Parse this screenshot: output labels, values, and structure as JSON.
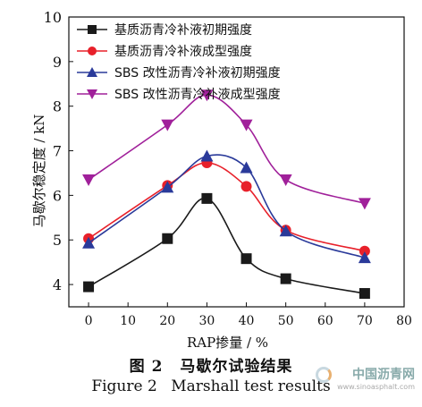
{
  "chart_data": {
    "type": "line",
    "x": [
      0,
      20,
      30,
      40,
      50,
      70
    ],
    "xlim": [
      -5,
      80
    ],
    "ylim": [
      3.5,
      10
    ],
    "xticks": [
      0,
      10,
      20,
      30,
      40,
      50,
      60,
      70,
      80
    ],
    "yticks": [
      4,
      5,
      6,
      7,
      8,
      9,
      10
    ],
    "xlabel": "RAP掺量 / %",
    "ylabel": "马歇尔稳定度 / kN",
    "grid": false,
    "legend_position": "top-left",
    "series": [
      {
        "name": "基质沥青冷补液初期强度",
        "marker": "square",
        "color": "#1a1a1a",
        "values": [
          3.95,
          5.03,
          5.93,
          4.58,
          4.13,
          3.8
        ]
      },
      {
        "name": "基质沥青冷补液成型强度",
        "marker": "circle",
        "color": "#e8202a",
        "values": [
          5.03,
          6.22,
          6.73,
          6.2,
          5.22,
          4.75
        ]
      },
      {
        "name": "SBS 改性沥青冷补液初期强度",
        "marker": "triangle-up",
        "color": "#2a3a9a",
        "values": [
          4.93,
          6.18,
          6.88,
          6.62,
          5.2,
          4.6
        ]
      },
      {
        "name": "SBS 改性沥青冷补液成型强度",
        "marker": "triangle-down",
        "color": "#a0209a",
        "values": [
          6.35,
          7.58,
          8.25,
          7.58,
          6.35,
          5.82
        ]
      }
    ]
  },
  "caption": {
    "zh_label": "图 2",
    "zh_title": "马歇尔试验结果",
    "en_label": "Figure 2",
    "en_title": "Marshall test results"
  },
  "watermark": {
    "name": "中国沥青网",
    "url": "www.sinoasphalt.com"
  }
}
